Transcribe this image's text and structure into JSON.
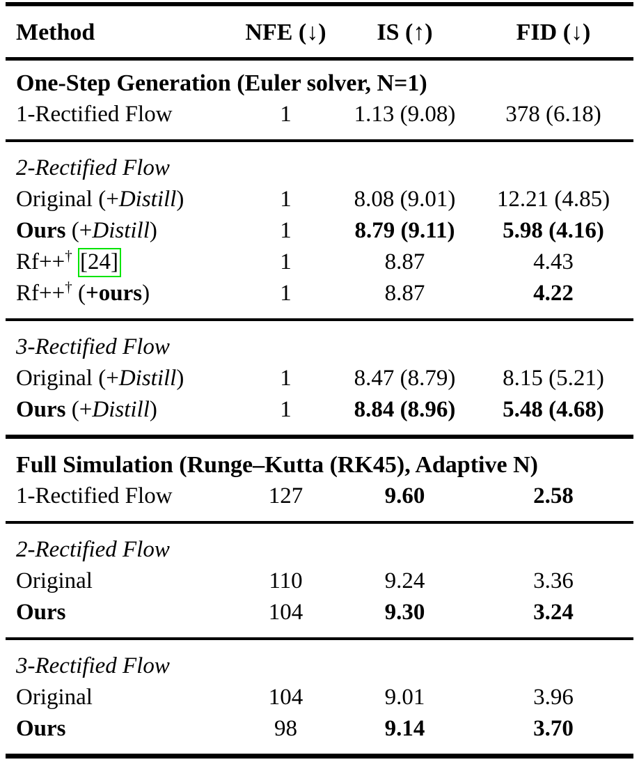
{
  "colors": {
    "background": "#ffffff",
    "text": "#000000",
    "rule": "#000000",
    "citation_border": "#00e400"
  },
  "table": {
    "columns": [
      {
        "key": "method",
        "label": "Method",
        "align": "left"
      },
      {
        "key": "nfe",
        "label": "NFE (↓)",
        "align": "center"
      },
      {
        "key": "is",
        "label": "IS (↑)",
        "align": "center"
      },
      {
        "key": "fid",
        "label": "FID (↓)",
        "align": "center"
      }
    ],
    "rows": [
      {
        "type": "section",
        "rule": null,
        "method": [
          {
            "t": "One-Step Generation (Euler solver, N=1)",
            "b": true
          }
        ]
      },
      {
        "type": "data",
        "rule": null,
        "method": [
          {
            "t": "1-Rectified Flow"
          }
        ],
        "nfe": [
          {
            "t": "1"
          }
        ],
        "is": [
          {
            "t": "1.13 (9.08)"
          }
        ],
        "fid": [
          {
            "t": "378 (6.18)"
          }
        ]
      },
      {
        "type": "subsection",
        "rule": "medium",
        "method": [
          {
            "t": "2-Rectified Flow",
            "i": true
          }
        ]
      },
      {
        "type": "data",
        "rule": null,
        "method": [
          {
            "t": "Original (+"
          },
          {
            "t": "Distill",
            "i": true
          },
          {
            "t": ")"
          }
        ],
        "nfe": [
          {
            "t": "1"
          }
        ],
        "is": [
          {
            "t": "8.08 (9.01)"
          }
        ],
        "fid": [
          {
            "t": "12.21 (4.85)"
          }
        ]
      },
      {
        "type": "data",
        "rule": null,
        "method": [
          {
            "t": "Ours",
            "b": true
          },
          {
            "t": " (+"
          },
          {
            "t": "Distill",
            "i": true
          },
          {
            "t": ")"
          }
        ],
        "nfe": [
          {
            "t": "1"
          }
        ],
        "is": [
          {
            "t": "8.79 (9.11)",
            "b": true
          }
        ],
        "fid": [
          {
            "t": "5.98 (4.16)",
            "b": true
          }
        ]
      },
      {
        "type": "data",
        "rule": null,
        "method": [
          {
            "t": "Rf++"
          },
          {
            "t": "†",
            "sup": true
          },
          {
            "t": " "
          },
          {
            "t": "[24]",
            "box": true
          }
        ],
        "nfe": [
          {
            "t": "1"
          }
        ],
        "is": [
          {
            "t": "8.87"
          }
        ],
        "fid": [
          {
            "t": "4.43"
          }
        ]
      },
      {
        "type": "data",
        "rule": null,
        "method": [
          {
            "t": "Rf++"
          },
          {
            "t": "†",
            "sup": true
          },
          {
            "t": " ("
          },
          {
            "t": "+ours",
            "b": true
          },
          {
            "t": ")"
          }
        ],
        "nfe": [
          {
            "t": "1"
          }
        ],
        "is": [
          {
            "t": "8.87"
          }
        ],
        "fid": [
          {
            "t": "4.22",
            "b": true
          }
        ]
      },
      {
        "type": "subsection",
        "rule": "medium",
        "method": [
          {
            "t": "3-Rectified Flow",
            "i": true
          }
        ]
      },
      {
        "type": "data",
        "rule": null,
        "method": [
          {
            "t": "Original (+"
          },
          {
            "t": "Distill",
            "i": true
          },
          {
            "t": ")"
          }
        ],
        "nfe": [
          {
            "t": "1"
          }
        ],
        "is": [
          {
            "t": "8.47 (8.79)"
          }
        ],
        "fid": [
          {
            "t": "8.15 (5.21)"
          }
        ]
      },
      {
        "type": "data",
        "rule": null,
        "method": [
          {
            "t": "Ours",
            "b": true
          },
          {
            "t": " (+"
          },
          {
            "t": "Distill",
            "i": true
          },
          {
            "t": ")"
          }
        ],
        "nfe": [
          {
            "t": "1"
          }
        ],
        "is": [
          {
            "t": "8.84 (8.96)",
            "b": true
          }
        ],
        "fid": [
          {
            "t": "5.48 (4.68)",
            "b": true
          }
        ]
      },
      {
        "type": "section",
        "rule": "thick",
        "method": [
          {
            "t": "Full Simulation (Runge–Kutta (RK45), Adaptive N)",
            "b": true
          }
        ]
      },
      {
        "type": "data",
        "rule": null,
        "method": [
          {
            "t": "1-Rectified Flow"
          }
        ],
        "nfe": [
          {
            "t": "127"
          }
        ],
        "is": [
          {
            "t": "9.60",
            "b": true
          }
        ],
        "fid": [
          {
            "t": "2.58",
            "b": true
          }
        ]
      },
      {
        "type": "subsection",
        "rule": "medium",
        "method": [
          {
            "t": "2-Rectified Flow",
            "i": true
          }
        ]
      },
      {
        "type": "data",
        "rule": null,
        "method": [
          {
            "t": "Original"
          }
        ],
        "nfe": [
          {
            "t": "110"
          }
        ],
        "is": [
          {
            "t": "9.24"
          }
        ],
        "fid": [
          {
            "t": "3.36"
          }
        ]
      },
      {
        "type": "data",
        "rule": null,
        "method": [
          {
            "t": "Ours",
            "b": true
          }
        ],
        "nfe": [
          {
            "t": "104"
          }
        ],
        "is": [
          {
            "t": "9.30",
            "b": true
          }
        ],
        "fid": [
          {
            "t": "3.24",
            "b": true
          }
        ]
      },
      {
        "type": "subsection",
        "rule": "medium",
        "method": [
          {
            "t": "3-Rectified Flow",
            "i": true
          }
        ]
      },
      {
        "type": "data",
        "rule": null,
        "method": [
          {
            "t": "Original"
          }
        ],
        "nfe": [
          {
            "t": "104"
          }
        ],
        "is": [
          {
            "t": "9.01"
          }
        ],
        "fid": [
          {
            "t": "3.96"
          }
        ]
      },
      {
        "type": "data",
        "rule": null,
        "method": [
          {
            "t": "Ours",
            "b": true
          }
        ],
        "nfe": [
          {
            "t": "98"
          }
        ],
        "is": [
          {
            "t": "9.14",
            "b": true
          }
        ],
        "fid": [
          {
            "t": "3.70",
            "b": true
          }
        ]
      }
    ]
  }
}
